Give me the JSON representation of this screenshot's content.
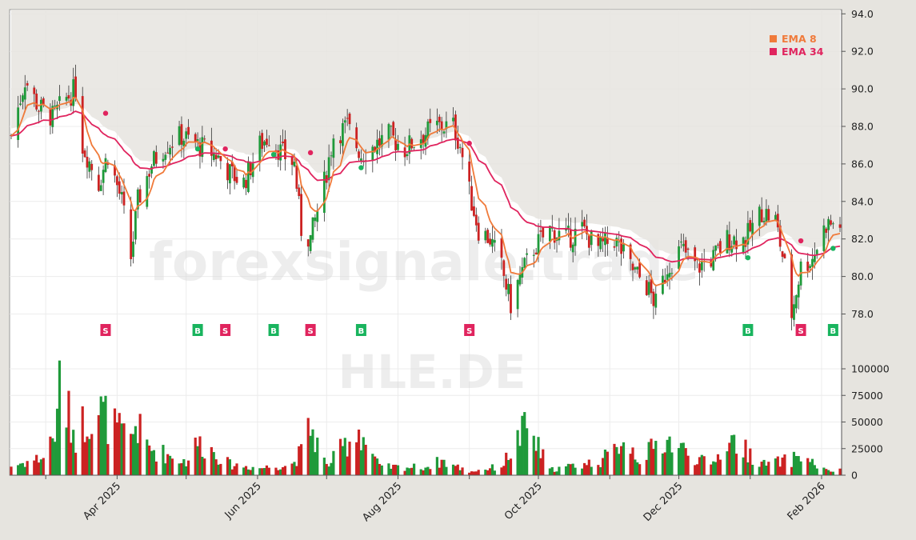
{
  "ticker": "HLE.DE",
  "watermark": "forexsignale.trade",
  "colors": {
    "background": "#e6e4df",
    "plot": "#ffffff",
    "up": "#1f9a3a",
    "down": "#cc2222",
    "ema_fast": "#f07a3a",
    "ema_slow": "#e0245e",
    "buy": "#19b45e",
    "sell": "#e0245e"
  },
  "legend": [
    {
      "name": "EMA 8",
      "color": "#f07a3a"
    },
    {
      "name": "EMA 34",
      "color": "#e0245e"
    }
  ],
  "price_axis": {
    "ticks": [
      "78.0",
      "80.0",
      "82.0",
      "84.0",
      "86.0",
      "88.0",
      "90.0",
      "92.0",
      "94.0"
    ]
  },
  "volume_axis": {
    "ticks": [
      "0",
      "25000",
      "50000",
      "75000",
      "100000"
    ]
  },
  "x_axis": {
    "labels": [
      "Apr 2025",
      "Jun 2025",
      "Aug 2025",
      "Oct 2025",
      "Dec 2025",
      "Feb 2026"
    ]
  },
  "chart_data": {
    "type": "candlestick",
    "period": "2025-02 to 2026-02 (daily)",
    "price_range": [
      77.0,
      94.4
    ],
    "volume_range": [
      0,
      115000
    ],
    "close_path": [
      [
        "2025-02-14",
        87.5
      ],
      [
        "2025-02-20",
        90.5
      ],
      [
        "2025-02-26",
        89.0
      ],
      [
        "2025-03-04",
        88.5
      ],
      [
        "2025-03-10",
        89.5
      ],
      [
        "2025-03-14",
        90.0
      ],
      [
        "2025-03-17",
        87.0
      ],
      [
        "2025-03-24",
        85.0
      ],
      [
        "2025-03-28",
        86.5
      ],
      [
        "2025-04-03",
        84.0
      ],
      [
        "2025-04-07",
        81.0
      ],
      [
        "2025-04-10",
        84.0
      ],
      [
        "2025-04-16",
        86.0
      ],
      [
        "2025-04-22",
        87.0
      ],
      [
        "2025-04-29",
        87.5
      ],
      [
        "2025-05-06",
        87.0
      ],
      [
        "2025-05-14",
        86.5
      ],
      [
        "2025-05-20",
        85.5
      ],
      [
        "2025-05-26",
        85.0
      ],
      [
        "2025-06-02",
        87.0
      ],
      [
        "2025-06-06",
        87.5
      ],
      [
        "2025-06-12",
        86.5
      ],
      [
        "2025-06-17",
        86.0
      ],
      [
        "2025-06-20",
        82.5
      ],
      [
        "2025-06-24",
        82.0
      ],
      [
        "2025-06-30",
        85.0
      ],
      [
        "2025-07-04",
        87.5
      ],
      [
        "2025-07-10",
        88.0
      ],
      [
        "2025-07-16",
        86.5
      ],
      [
        "2025-07-22",
        87.0
      ],
      [
        "2025-07-28",
        87.5
      ],
      [
        "2025-08-04",
        86.8
      ],
      [
        "2025-08-11",
        87.5
      ],
      [
        "2025-08-18",
        88.0
      ],
      [
        "2025-08-25",
        88.0
      ],
      [
        "2025-08-28",
        87.0
      ],
      [
        "2025-09-01",
        84.5
      ],
      [
        "2025-09-05",
        82.5
      ],
      [
        "2025-09-10",
        82.0
      ],
      [
        "2025-09-15",
        80.5
      ],
      [
        "2025-09-19",
        78.5
      ],
      [
        "2025-09-23",
        80.0
      ],
      [
        "2025-09-29",
        81.5
      ],
      [
        "2025-10-06",
        82.5
      ],
      [
        "2025-10-13",
        82.0
      ],
      [
        "2025-10-20",
        82.5
      ],
      [
        "2025-10-27",
        81.5
      ],
      [
        "2025-11-03",
        82.0
      ],
      [
        "2025-11-10",
        80.5
      ],
      [
        "2025-11-17",
        79.5
      ],
      [
        "2025-11-21",
        78.5
      ],
      [
        "2025-11-26",
        80.5
      ],
      [
        "2025-12-02",
        81.5
      ],
      [
        "2025-12-09",
        80.5
      ],
      [
        "2025-12-16",
        81.0
      ],
      [
        "2025-12-22",
        82.0
      ],
      [
        "2025-12-30",
        82.0
      ],
      [
        "2026-01-06",
        83.5
      ],
      [
        "2026-01-12",
        83.0
      ],
      [
        "2026-01-16",
        80.5
      ],
      [
        "2026-01-19",
        78.0
      ],
      [
        "2026-01-23",
        80.5
      ],
      [
        "2026-01-28",
        81.0
      ],
      [
        "2026-02-03",
        82.8
      ]
    ],
    "volume_path": [
      [
        "2025-02-14",
        10000
      ],
      [
        "2025-02-28",
        20000
      ],
      [
        "2025-03-06",
        55000
      ],
      [
        "2025-03-07",
        112000
      ],
      [
        "2025-03-10",
        72000
      ],
      [
        "2025-03-14",
        45000
      ],
      [
        "2025-03-20",
        68000
      ],
      [
        "2025-03-24",
        73000
      ],
      [
        "2025-04-03",
        45000
      ],
      [
        "2025-04-07",
        40000
      ],
      [
        "2025-04-09",
        56000
      ],
      [
        "2025-04-15",
        30000
      ],
      [
        "2025-05-01",
        15000
      ],
      [
        "2025-05-06",
        36000
      ],
      [
        "2025-05-12",
        28000
      ],
      [
        "2025-05-20",
        12000
      ],
      [
        "2025-06-02",
        8000
      ],
      [
        "2025-06-16",
        12000
      ],
      [
        "2025-06-20",
        26000
      ],
      [
        "2025-06-24",
        54000
      ],
      [
        "2025-07-01",
        10000
      ],
      [
        "2025-07-15",
        51000
      ],
      [
        "2025-07-24",
        9000
      ],
      [
        "2025-08-13",
        9000
      ],
      [
        "2025-08-20",
        16000
      ],
      [
        "2025-09-01",
        4000
      ],
      [
        "2025-09-15",
        10000
      ],
      [
        "2025-09-26",
        54000
      ],
      [
        "2025-10-06",
        6000
      ],
      [
        "2025-10-27",
        15000
      ],
      [
        "2025-11-04",
        27000
      ],
      [
        "2025-11-06",
        45000
      ],
      [
        "2025-11-14",
        18000
      ],
      [
        "2025-11-25",
        40000
      ],
      [
        "2025-12-15",
        10000
      ],
      [
        "2025-12-23",
        41000
      ],
      [
        "2026-01-07",
        12000
      ],
      [
        "2026-01-19",
        17000
      ],
      [
        "2026-01-22",
        23000
      ],
      [
        "2026-02-03",
        5000
      ]
    ],
    "signals": [
      {
        "date": "2025-03-27",
        "type": "S",
        "price": 88.7
      },
      {
        "date": "2025-05-06",
        "type": "B",
        "price": 86.8
      },
      {
        "date": "2025-05-18",
        "type": "S",
        "price": 86.8
      },
      {
        "date": "2025-06-08",
        "type": "B",
        "price": 86.5
      },
      {
        "date": "2025-06-24",
        "type": "S",
        "price": 86.6
      },
      {
        "date": "2025-07-16",
        "type": "B",
        "price": 85.8
      },
      {
        "date": "2025-09-01",
        "type": "S",
        "price": 87.1
      },
      {
        "date": "2025-12-31",
        "type": "B",
        "price": 81.0
      },
      {
        "date": "2026-01-23",
        "type": "S",
        "price": 81.9
      },
      {
        "date": "2026-02-06",
        "type": "B",
        "price": 81.5
      }
    ]
  }
}
